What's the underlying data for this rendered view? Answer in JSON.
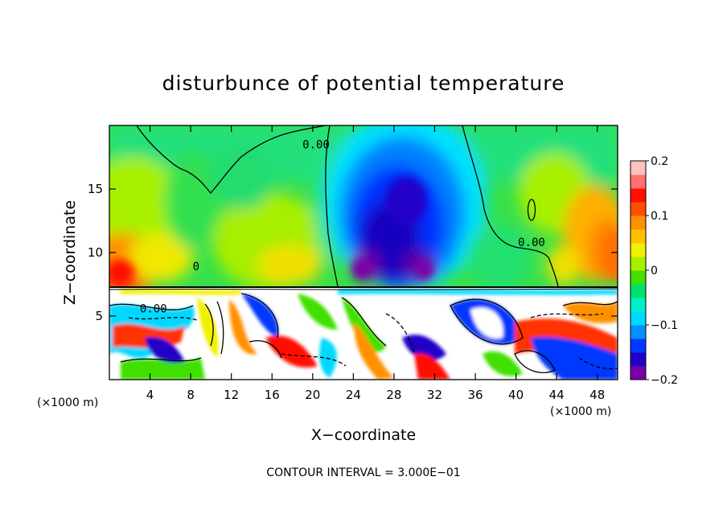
{
  "chart_data": {
    "type": "heatmap",
    "title": "disturbunce of potential temperature",
    "xlabel": "X−coordinate",
    "ylabel": "Z−coordinate",
    "x_unit": "(×1000 m)",
    "z_unit": "(×1000 m)",
    "xlim": [
      0,
      50
    ],
    "ylim": [
      0,
      20
    ],
    "x_ticks": [
      4,
      8,
      12,
      16,
      20,
      24,
      28,
      32,
      36,
      40,
      44,
      48
    ],
    "x_tick_labels": [
      "4",
      "8",
      "12",
      "16",
      "20",
      "24",
      "28",
      "32",
      "36",
      "40",
      "44",
      "48"
    ],
    "y_ticks": [
      5,
      10,
      15
    ],
    "y_tick_labels": [
      "5",
      "10",
      "15"
    ],
    "colorbar": {
      "min": -0.2,
      "max": 0.2,
      "ticks": [
        -0.2,
        -0.1,
        0,
        0.1,
        0.2
      ],
      "tick_labels": [
        "−0.2",
        "−0.1",
        "0",
        "0.1",
        "0.2"
      ],
      "colors": [
        "#7a00a8",
        "#2000c8",
        "#0038ff",
        "#0090ff",
        "#00d8ff",
        "#00f0c8",
        "#00e070",
        "#40e000",
        "#a8f000",
        "#f0f000",
        "#ffc000",
        "#ff9000",
        "#ff5000",
        "#ff1000",
        "#ff7070",
        "#ffc0c0"
      ]
    },
    "contour_labels": [
      {
        "text": "0.00",
        "x": 19.0,
        "z": 18.2
      },
      {
        "text": "0.00",
        "x": 40.2,
        "z": 10.5
      },
      {
        "text": "0",
        "x": 8.2,
        "z": 8.6
      },
      {
        "text": "0.00",
        "x": 3.0,
        "z": 5.3
      }
    ],
    "contour_interval_text": "CONTOUR INTERVAL = 3.000E−01"
  },
  "colors": {
    "frame": "#000000",
    "background": "#ffffff"
  }
}
